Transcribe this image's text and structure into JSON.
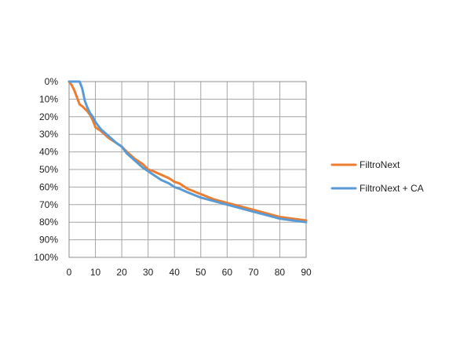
{
  "chart_data": {
    "type": "line",
    "title": "",
    "xlabel": "",
    "ylabel": "",
    "xlim": [
      0,
      90
    ],
    "ylim": [
      0,
      100
    ],
    "y_inverted": true,
    "grid": true,
    "legend_position": "right",
    "x_ticks": [
      "0",
      "10",
      "20",
      "30",
      "40",
      "50",
      "60",
      "70",
      "80",
      "90"
    ],
    "y_ticks": [
      "0%",
      "10%",
      "20%",
      "30%",
      "40%",
      "50%",
      "60%",
      "70%",
      "80%",
      "90%",
      "100%"
    ],
    "series": [
      {
        "name": "FiltroNext",
        "color": "#ed7d31",
        "x": [
          0,
          1,
          2,
          3,
          4,
          5,
          6,
          7,
          8,
          9,
          10,
          12,
          15,
          18,
          20,
          22,
          25,
          28,
          30,
          32,
          35,
          38,
          40,
          42,
          45,
          50,
          55,
          60,
          65,
          70,
          75,
          80,
          85,
          90
        ],
        "y": [
          0,
          2,
          5,
          9,
          13,
          14,
          15.5,
          17,
          19,
          22,
          26,
          28,
          32,
          35,
          37,
          40,
          44,
          47,
          50,
          51,
          53,
          55,
          57,
          58,
          61,
          64,
          67,
          69,
          71,
          73,
          75,
          77,
          78,
          79
        ]
      },
      {
        "name": "FiltroNext + CA",
        "color": "#5b9bd5",
        "x": [
          0,
          1,
          2,
          3,
          4,
          5,
          6,
          7,
          8,
          9,
          10,
          12,
          15,
          18,
          20,
          22,
          25,
          28,
          30,
          32,
          35,
          38,
          40,
          42,
          45,
          50,
          55,
          60,
          65,
          70,
          75,
          80,
          85,
          90
        ],
        "y": [
          0,
          0,
          0,
          0,
          0,
          4,
          11,
          15,
          18,
          20,
          23,
          27,
          31,
          35,
          37,
          41,
          45,
          49,
          51,
          53,
          56,
          58,
          60,
          61,
          63,
          66,
          68,
          70,
          72,
          74,
          76,
          78,
          79,
          80
        ]
      }
    ]
  }
}
